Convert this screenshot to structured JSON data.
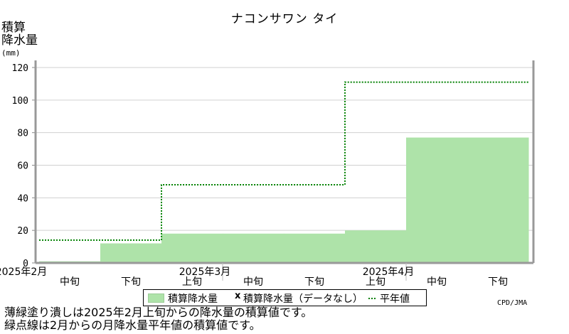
{
  "title": "ナコンサワン タイ",
  "ylabel_lines": [
    "積算",
    "降水量"
  ],
  "yunit": "(mm)",
  "legend": {
    "bar_label": "積算降水量",
    "missing_mark": "x",
    "missing_label": "積算降水量（データなし）",
    "normal_label": "平年値"
  },
  "credit": "CPD/JMA",
  "notes": [
    "薄緑塗り潰しは2025年2月上旬からの降水量の積算値です。",
    "緑点線は2月からの月降水量平年値の積算値です。"
  ],
  "chart_data": {
    "type": "area",
    "title": "ナコンサワン タイ",
    "ylabel": "積算降水量 (mm)",
    "ylim": [
      0,
      120
    ],
    "yticks": [
      0,
      20,
      40,
      60,
      80,
      100,
      120
    ],
    "grid": true,
    "legend_position": "bottom",
    "periods": [
      "2025年2月中旬",
      "2025年2月下旬",
      "2025年3月上旬",
      "2025年3月中旬",
      "2025年3月下旬",
      "2025年4月上旬",
      "2025年4月中旬",
      "2025年4月下旬"
    ],
    "x_tick_labels": [
      "中旬",
      "下旬",
      "上旬",
      "中旬",
      "下旬",
      "上旬",
      "中旬",
      "下旬"
    ],
    "month_labels": [
      {
        "label": "2025年2月",
        "period_index": 0
      },
      {
        "label": "2025年3月",
        "period_index": 3
      },
      {
        "label": "2025年4月",
        "period_index": 6
      }
    ],
    "series": [
      {
        "name": "積算降水量",
        "style": "filled-step",
        "color": "#aee3a9",
        "values": [
          1,
          12,
          18,
          18,
          18,
          20,
          77,
          77
        ]
      },
      {
        "name": "平年値",
        "style": "dotted-step",
        "color": "#008000",
        "values": [
          14,
          14,
          48,
          48,
          48,
          111,
          111,
          111
        ]
      }
    ]
  }
}
